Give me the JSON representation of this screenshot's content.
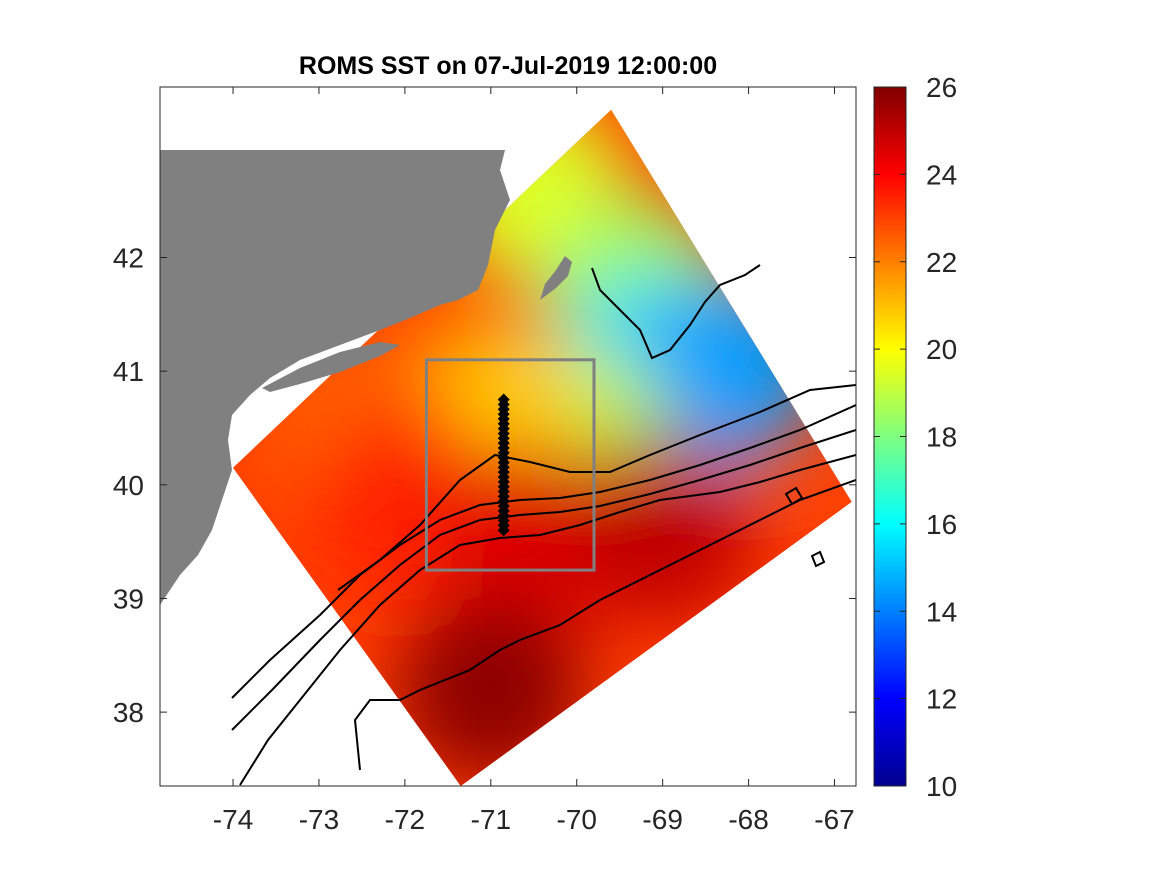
{
  "chart_data": {
    "type": "heatmap",
    "title": "ROMS SST on 07-Jul-2019 12:00:00",
    "xlabel": "",
    "ylabel": "",
    "xlim": [
      -74.85,
      -66.75
    ],
    "ylim": [
      37.35,
      43.5
    ],
    "x_ticks": [
      -74,
      -73,
      -72,
      -71,
      -70,
      -69,
      -68,
      -67
    ],
    "x_tick_labels": [
      "-74",
      "-73",
      "-72",
      "-71",
      "-70",
      "-69",
      "-68",
      "-67"
    ],
    "y_ticks": [
      38,
      39,
      40,
      41,
      42
    ],
    "y_tick_labels": [
      "38",
      "39",
      "40",
      "41",
      "42"
    ],
    "colorbar": {
      "colormap": "jet",
      "clim": [
        10,
        26
      ],
      "ticks": [
        10,
        12,
        14,
        16,
        18,
        20,
        22,
        24,
        26
      ],
      "tick_labels": [
        "10",
        "12",
        "14",
        "16",
        "18",
        "20",
        "22",
        "24",
        "26"
      ]
    },
    "domain_corners": [
      [
        -74.0,
        40.15
      ],
      [
        -71.35,
        37.35
      ],
      [
        -66.8,
        39.85
      ],
      [
        -69.6,
        43.3
      ]
    ],
    "land_color": "#808080",
    "sst_regions": [
      {
        "lon": -70.5,
        "lat": 42.6,
        "value": 19.5
      },
      {
        "lon": -69.3,
        "lat": 41.7,
        "value": 18.5
      },
      {
        "lon": -69.2,
        "lat": 41.0,
        "value": 15.5
      },
      {
        "lon": -68.3,
        "lat": 41.0,
        "value": 14.5
      },
      {
        "lon": -70.0,
        "lat": 40.4,
        "value": 18.8
      },
      {
        "lon": -71.0,
        "lat": 40.6,
        "value": 20.8
      },
      {
        "lon": -72.5,
        "lat": 40.5,
        "value": 22.5
      },
      {
        "lon": -72.0,
        "lat": 39.8,
        "value": 23.5
      },
      {
        "lon": -70.5,
        "lat": 39.5,
        "value": 24.5
      },
      {
        "lon": -69.0,
        "lat": 39.6,
        "value": 25.0
      },
      {
        "lon": -71.0,
        "lat": 38.2,
        "value": 25.8
      }
    ],
    "box": {
      "lon": [
        -71.75,
        -69.8
      ],
      "lat": [
        39.25,
        41.1
      ]
    },
    "transect": {
      "lon": -70.85,
      "lat_range": [
        39.6,
        40.75
      ],
      "count": 28
    }
  }
}
